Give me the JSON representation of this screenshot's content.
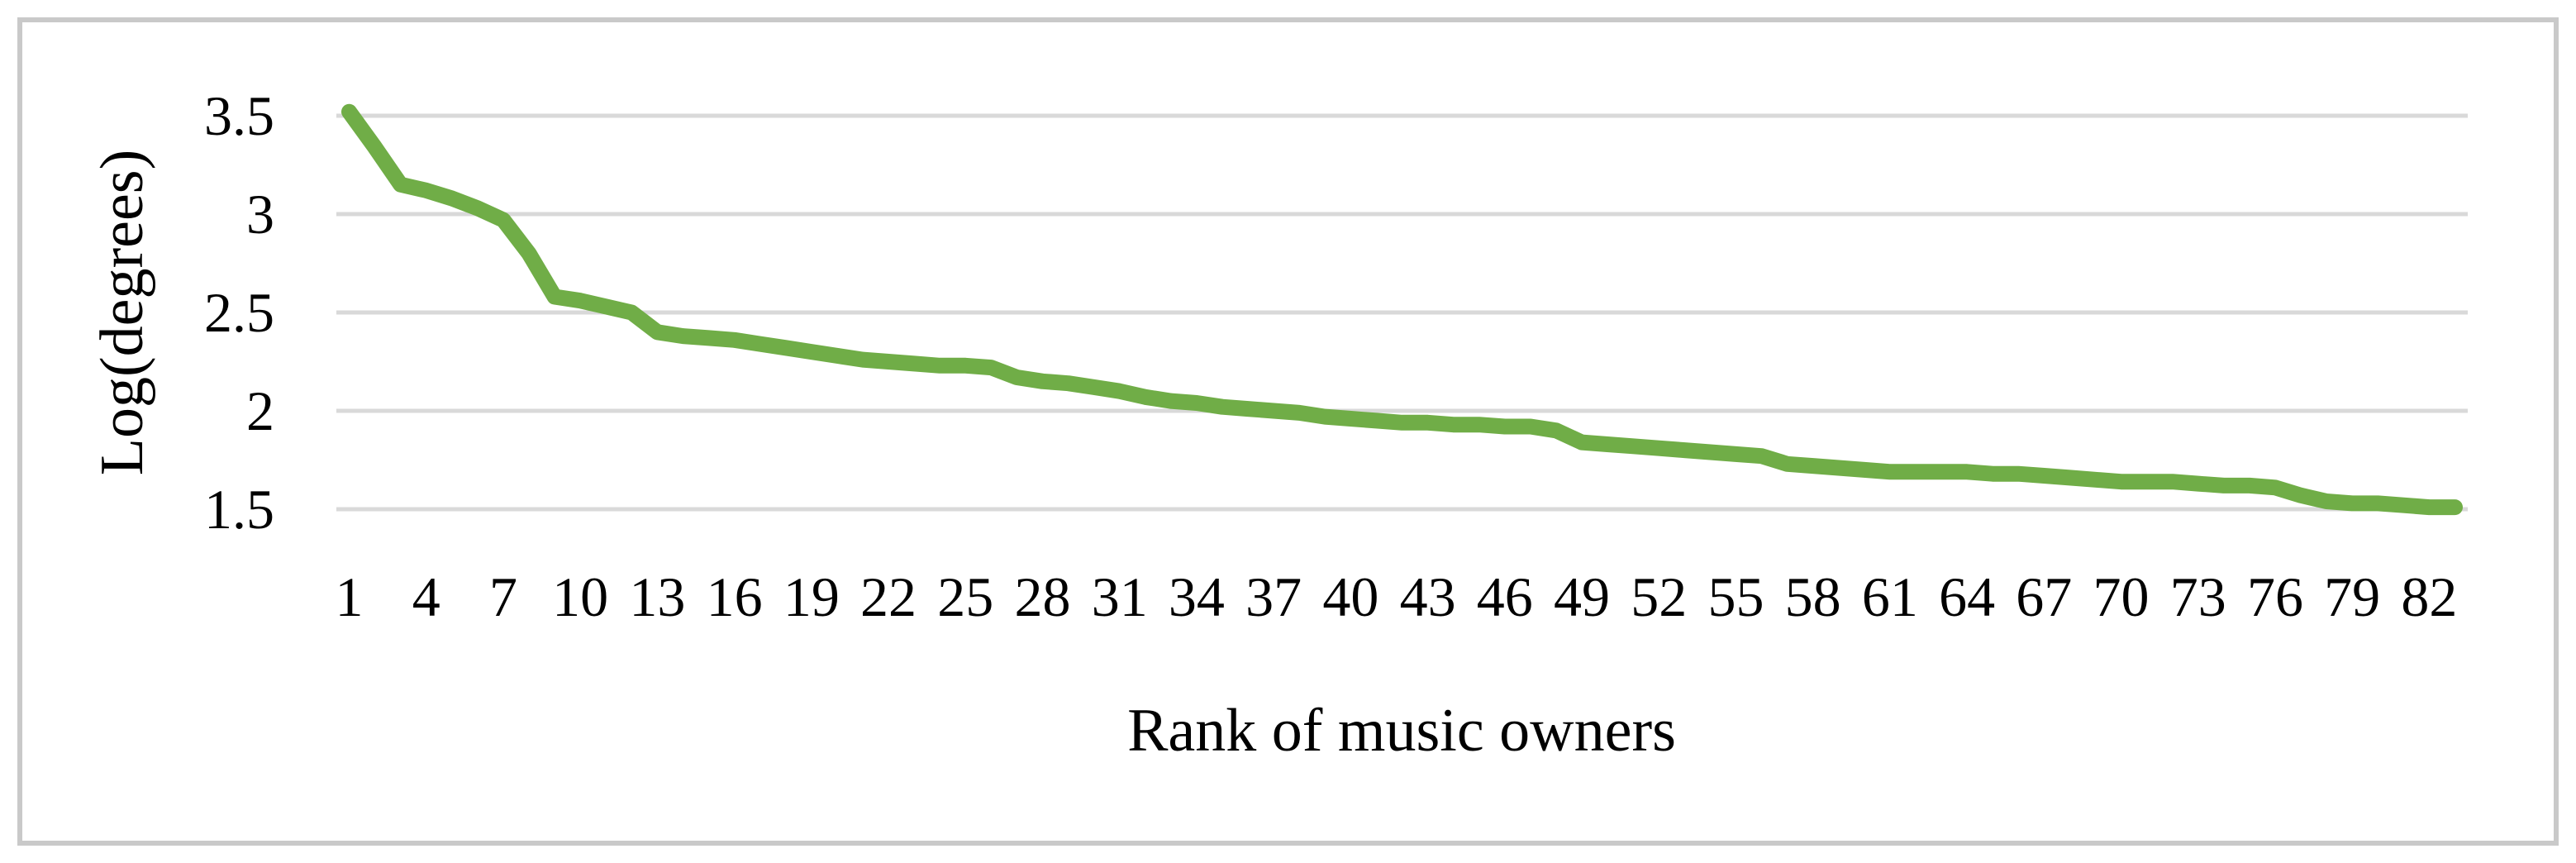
{
  "chart_data": {
    "type": "line",
    "title": "",
    "xlabel": "Rank of music owners",
    "ylabel": "Log(degrees)",
    "x": [
      1,
      2,
      3,
      4,
      5,
      6,
      7,
      8,
      9,
      10,
      11,
      12,
      13,
      14,
      15,
      16,
      17,
      18,
      19,
      20,
      21,
      22,
      23,
      24,
      25,
      26,
      27,
      28,
      29,
      30,
      31,
      32,
      33,
      34,
      35,
      36,
      37,
      38,
      39,
      40,
      41,
      42,
      43,
      44,
      45,
      46,
      47,
      48,
      49,
      50,
      51,
      52,
      53,
      54,
      55,
      56,
      57,
      58,
      59,
      60,
      61,
      62,
      63,
      64,
      65,
      66,
      67,
      68,
      69,
      70,
      71,
      72,
      73,
      74,
      75,
      76,
      77,
      78,
      79,
      80,
      81,
      82,
      83
    ],
    "x_tick_labels": [
      "1",
      "4",
      "7",
      "10",
      "13",
      "16",
      "19",
      "22",
      "25",
      "28",
      "31",
      "34",
      "37",
      "40",
      "43",
      "46",
      "49",
      "52",
      "55",
      "58",
      "61",
      "64",
      "67",
      "70",
      "73",
      "76",
      "79",
      "82"
    ],
    "y_ticks": [
      3.5,
      3.0,
      2.5,
      2.0,
      1.5
    ],
    "y_tick_labels": [
      "3.5",
      "3",
      "2.5",
      "2",
      "1.5"
    ],
    "ylim": [
      1.5,
      3.5
    ],
    "grid": "horizontal",
    "legend_position": "none",
    "series": [
      {
        "name": "Log(degrees)",
        "color": "#70AD47",
        "values": [
          3.52,
          3.34,
          3.15,
          3.12,
          3.08,
          3.03,
          2.97,
          2.8,
          2.58,
          2.56,
          2.53,
          2.5,
          2.4,
          2.38,
          2.37,
          2.36,
          2.34,
          2.32,
          2.3,
          2.28,
          2.26,
          2.25,
          2.24,
          2.23,
          2.23,
          2.22,
          2.17,
          2.15,
          2.14,
          2.12,
          2.1,
          2.07,
          2.05,
          2.04,
          2.02,
          2.01,
          2.0,
          1.99,
          1.97,
          1.96,
          1.95,
          1.94,
          1.94,
          1.93,
          1.93,
          1.92,
          1.92,
          1.9,
          1.84,
          1.83,
          1.82,
          1.81,
          1.8,
          1.79,
          1.78,
          1.77,
          1.73,
          1.72,
          1.71,
          1.7,
          1.69,
          1.69,
          1.69,
          1.69,
          1.68,
          1.68,
          1.67,
          1.66,
          1.65,
          1.64,
          1.64,
          1.64,
          1.63,
          1.62,
          1.62,
          1.61,
          1.57,
          1.54,
          1.53,
          1.53,
          1.52,
          1.51,
          1.51
        ]
      }
    ]
  },
  "colors": {
    "line_green": "#70AD47",
    "gridline": "#D9D9D9",
    "frame_border": "#C9C9C9",
    "text": "#000000",
    "background": "#FFFFFF"
  }
}
